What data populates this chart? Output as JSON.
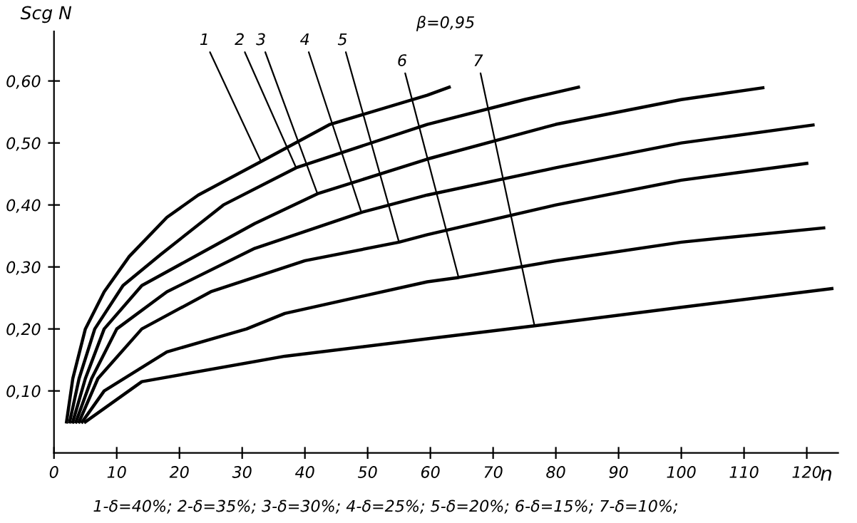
{
  "chart_data": {
    "type": "line",
    "xlabel": "n",
    "ylabel": "Scg N",
    "xlim": [
      0,
      125
    ],
    "ylim": [
      0,
      0.68
    ],
    "xticks": [
      0,
      10,
      20,
      30,
      40,
      50,
      60,
      70,
      80,
      90,
      100,
      110,
      120
    ],
    "yticks": [
      {
        "value": 0.1,
        "label": "0,10"
      },
      {
        "value": 0.2,
        "label": "0,20"
      },
      {
        "value": 0.3,
        "label": "0,30"
      },
      {
        "value": 0.4,
        "label": "0,40"
      },
      {
        "value": 0.5,
        "label": "0,50"
      },
      {
        "value": 0.6,
        "label": "0,60"
      }
    ],
    "grid": false,
    "legend": false,
    "marker": "none",
    "line_style": "solid",
    "series": [
      {
        "color": "#000000",
        "x": [
          2,
          3,
          5,
          8,
          12,
          18,
          23,
          33,
          44,
          59.5,
          63
        ],
        "values": [
          0.05,
          0.12,
          0.2,
          0.26,
          0.317,
          0.38,
          0.416,
          0.47,
          0.53,
          0.577,
          0.59
        ]
      },
      {
        "color": "#000000",
        "x": [
          2.5,
          4,
          6.5,
          11,
          17,
          27,
          38.6,
          59.5,
          75,
          83.6
        ],
        "values": [
          0.05,
          0.12,
          0.2,
          0.27,
          0.32,
          0.4,
          0.46,
          0.53,
          0.57,
          0.59
        ]
      },
      {
        "color": "#000000",
        "x": [
          3,
          5,
          8,
          14,
          23,
          32,
          42,
          59.5,
          80,
          100,
          113
        ],
        "values": [
          0.05,
          0.12,
          0.2,
          0.27,
          0.32,
          0.37,
          0.418,
          0.474,
          0.53,
          0.57,
          0.589
        ]
      },
      {
        "color": "#000000",
        "x": [
          3.5,
          6,
          10,
          18,
          32,
          49,
          59.5,
          80,
          100,
          121
        ],
        "values": [
          0.05,
          0.12,
          0.2,
          0.26,
          0.33,
          0.388,
          0.416,
          0.46,
          0.5,
          0.529
        ]
      },
      {
        "color": "#000000",
        "x": [
          4,
          7,
          14,
          25,
          40,
          55,
          59.5,
          80,
          100,
          120
        ],
        "values": [
          0.05,
          0.12,
          0.2,
          0.26,
          0.31,
          0.34,
          0.352,
          0.4,
          0.44,
          0.467
        ]
      },
      {
        "color": "#000000",
        "x": [
          4.5,
          8,
          18,
          30.7,
          36.8,
          59.5,
          64.5,
          80,
          100,
          122.7
        ],
        "values": [
          0.05,
          0.1,
          0.163,
          0.2,
          0.225,
          0.276,
          0.283,
          0.31,
          0.34,
          0.363
        ]
      },
      {
        "color": "#000000",
        "x": [
          5,
          14,
          36.8,
          59.5,
          76.6,
          100,
          124
        ],
        "values": [
          0.05,
          0.115,
          0.156,
          0.184,
          0.205,
          0.235,
          0.265
        ]
      }
    ],
    "annotations": [
      "β=0,95",
      "1-δ=40%; 2-δ=35%; 3-δ=30%; 4-δ=25%; 5-δ=20%; 6-δ=15%; 7-δ=10%;",
      {
        "text": "1",
        "x": 33,
        "y": 0.47
      },
      {
        "text": "2",
        "x": 38.6,
        "y": 0.46
      },
      {
        "text": "3",
        "x": 42,
        "y": 0.418
      },
      {
        "text": "4",
        "x": 49,
        "y": 0.388
      },
      {
        "text": "5",
        "x": 55,
        "y": 0.34
      },
      {
        "text": "6",
        "x": 64.5,
        "y": 0.283
      },
      {
        "text": "7",
        "x": 76.6,
        "y": 0.205
      }
    ]
  }
}
